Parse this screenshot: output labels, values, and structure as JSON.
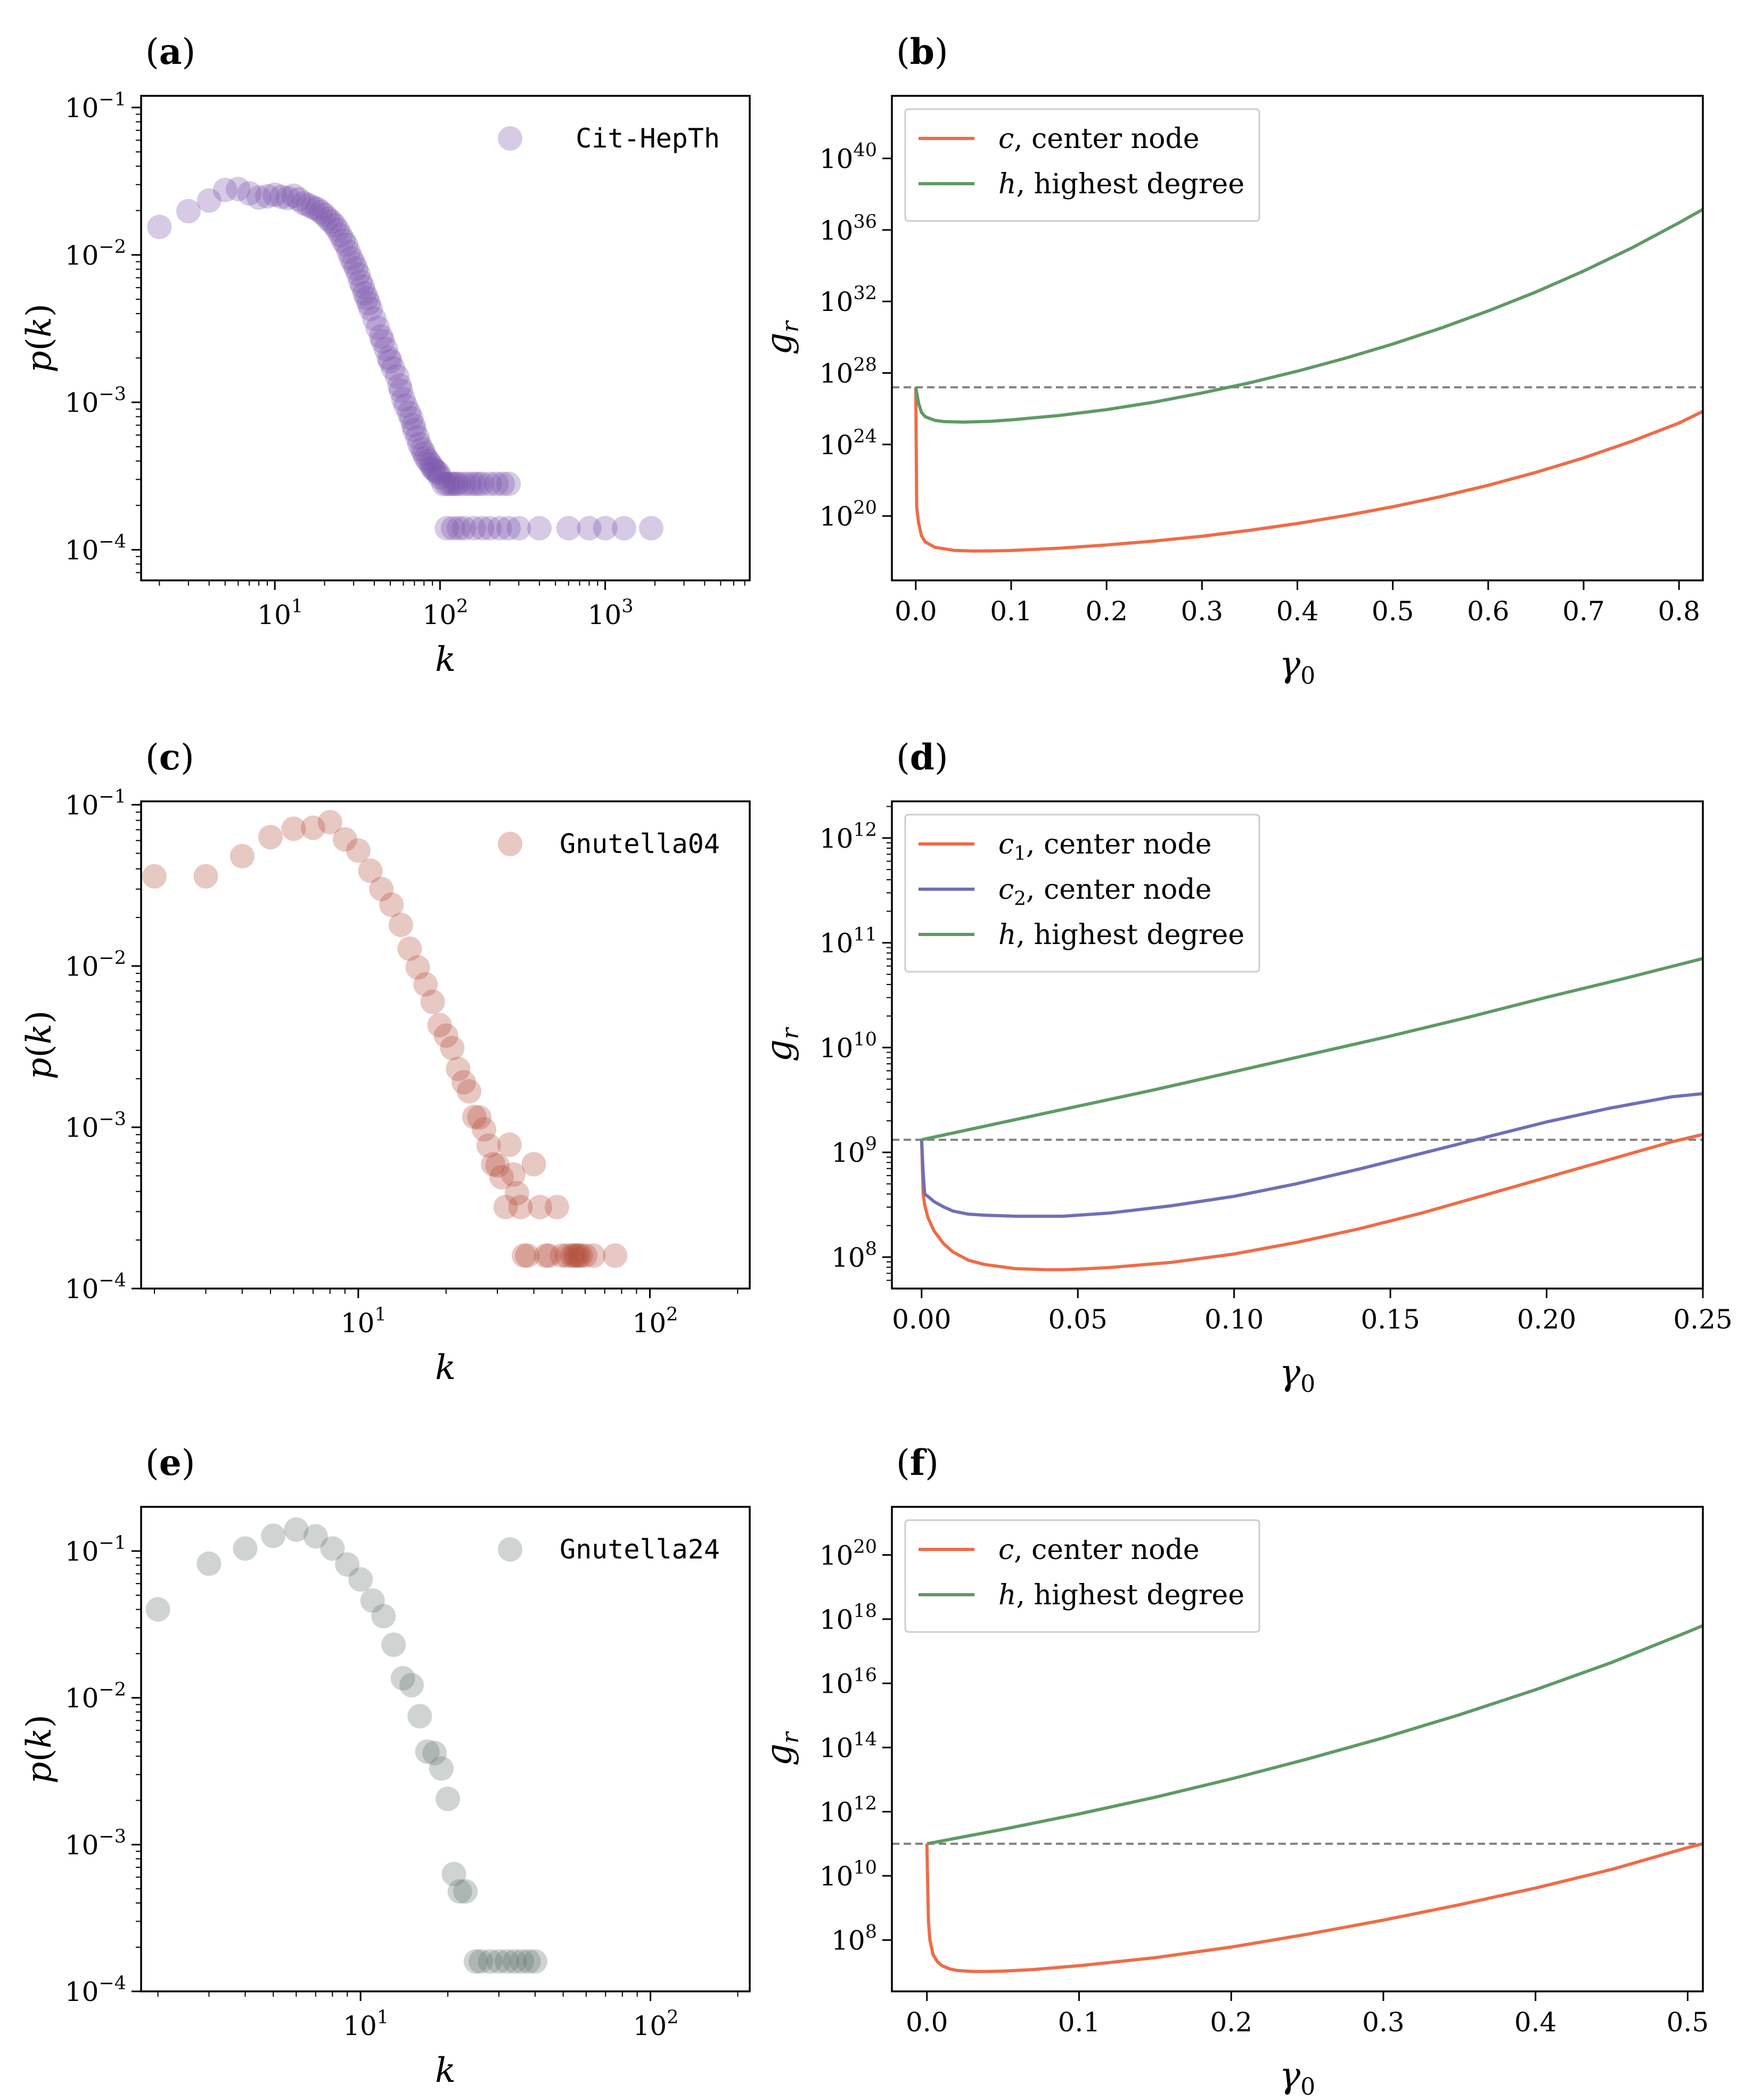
{
  "figure": {
    "panel_labels": [
      "(a)",
      "(b)",
      "(c)",
      "(d)",
      "(e)",
      "(f)"
    ]
  },
  "colors": {
    "purple": "#7851a9",
    "red": "#b24a35",
    "gray": "#5f7269",
    "orange": "#ef6c48",
    "blue": "#6f6fb7",
    "green": "#5f9a64",
    "dashed": "#808080"
  },
  "chart_data": [
    {
      "panel": "(a)",
      "type": "scatter",
      "xscale": "log",
      "yscale": "log",
      "xlabel": "k",
      "ylabel": "p(k)",
      "xlim": [
        1.55,
        7500
      ],
      "ylim": [
        6.2e-05,
        0.12
      ],
      "xticks": [
        10,
        100,
        1000
      ],
      "xtick_labels": [
        "10^1",
        "10^2",
        "10^3"
      ],
      "yticks": [
        0.0001,
        0.001,
        0.01,
        0.1
      ],
      "ytick_labels": [
        "10^-4",
        "10^-3",
        "10^-2",
        "10^-1"
      ],
      "legend": {
        "label": "Cit-HepTh",
        "position": "top-right"
      },
      "color": "#7851a9",
      "series": [
        {
          "name": "Cit-HepTh",
          "x": [
            2,
            3,
            4,
            5,
            6,
            7,
            8,
            9,
            10,
            11,
            12,
            13,
            14,
            15,
            16,
            17,
            18,
            19,
            20,
            21,
            22,
            23,
            24,
            25,
            26,
            27,
            28,
            29,
            30,
            31,
            32,
            33,
            34,
            35,
            36,
            37,
            38,
            40,
            42,
            44,
            45,
            47,
            49,
            50,
            52,
            55,
            57,
            58,
            60,
            62,
            65,
            67,
            69,
            70,
            73,
            75,
            78,
            80,
            82,
            85,
            88,
            90,
            92,
            95,
            98,
            100,
            105,
            110,
            115,
            120,
            125,
            130,
            140,
            150,
            160,
            170,
            180,
            200,
            220,
            240,
            260,
            110,
            120,
            130,
            140,
            160,
            180,
            200,
            230,
            260,
            300,
            400,
            600,
            800,
            1000,
            1300,
            1900
          ],
          "y": [
            0.0155,
            0.0198,
            0.0234,
            0.0276,
            0.028,
            0.0262,
            0.0245,
            0.025,
            0.0256,
            0.0248,
            0.0243,
            0.0252,
            0.0238,
            0.0224,
            0.0218,
            0.021,
            0.0205,
            0.0196,
            0.0187,
            0.0176,
            0.0168,
            0.0159,
            0.0148,
            0.0136,
            0.0125,
            0.0117,
            0.0105,
            0.0095,
            0.0088,
            0.0081,
            0.0074,
            0.0066,
            0.0061,
            0.0055,
            0.0051,
            0.0047,
            0.0043,
            0.0037,
            0.0032,
            0.0028,
            0.0026,
            0.0023,
            0.002,
            0.0019,
            0.0017,
            0.0015,
            0.0013,
            0.0012,
            0.00105,
            0.00095,
            0.00085,
            0.00078,
            0.0007,
            0.00065,
            0.00058,
            0.00052,
            0.00048,
            0.00045,
            0.00042,
            0.0004,
            0.00038,
            0.00036,
            0.00035,
            0.00034,
            0.00033,
            0.00031,
            0.00028,
            0.00028,
            0.00028,
            0.00028,
            0.00028,
            0.00028,
            0.00028,
            0.00028,
            0.00028,
            0.00028,
            0.00028,
            0.00028,
            0.00028,
            0.00028,
            0.00028,
            0.00014,
            0.00014,
            0.00014,
            0.00014,
            0.00014,
            0.00014,
            0.00014,
            0.00014,
            0.00014,
            0.00014,
            0.00014,
            0.00014,
            0.00014,
            0.00014,
            0.00014,
            0.00014
          ]
        }
      ]
    },
    {
      "panel": "(b)",
      "type": "line",
      "xscale": "linear",
      "yscale": "log",
      "xlabel": "γ0",
      "ylabel": "g_r",
      "xlim": [
        -0.025,
        0.825
      ],
      "ylim_exp": [
        16.4,
        43.5
      ],
      "xticks": [
        0.0,
        0.1,
        0.2,
        0.3,
        0.4,
        0.5,
        0.6,
        0.7,
        0.8
      ],
      "xtick_labels": [
        "0.0",
        "0.1",
        "0.2",
        "0.3",
        "0.4",
        "0.5",
        "0.6",
        "0.7",
        "0.8"
      ],
      "ytick_exps": [
        20,
        24,
        28,
        32,
        36,
        40
      ],
      "legend": {
        "position": "top-left"
      },
      "hline_exp": 27.2,
      "series": [
        {
          "name": "c, center node",
          "label_math": "c",
          "label_text": ", center node",
          "color": "#ef6c48",
          "x": [
            0,
            0.001,
            0.003,
            0.006,
            0.01,
            0.02,
            0.04,
            0.06,
            0.08,
            0.1,
            0.15,
            0.2,
            0.25,
            0.3,
            0.35,
            0.4,
            0.45,
            0.5,
            0.55,
            0.6,
            0.65,
            0.7,
            0.75,
            0.8,
            0.825
          ],
          "y_exp": [
            27.2,
            20.5,
            19.6,
            18.9,
            18.55,
            18.25,
            18.08,
            18.04,
            18.05,
            18.07,
            18.2,
            18.38,
            18.6,
            18.87,
            19.2,
            19.58,
            20.02,
            20.52,
            21.08,
            21.72,
            22.44,
            23.25,
            24.17,
            25.2,
            25.85
          ]
        },
        {
          "name": "h, highest degree",
          "label_math": "h",
          "label_text": ", highest degree",
          "color": "#5f9a64",
          "x": [
            0,
            0.003,
            0.006,
            0.01,
            0.02,
            0.03,
            0.05,
            0.08,
            0.1,
            0.15,
            0.2,
            0.25,
            0.3,
            0.35,
            0.4,
            0.45,
            0.5,
            0.55,
            0.6,
            0.65,
            0.7,
            0.75,
            0.8,
            0.825
          ],
          "y_exp": [
            27.2,
            26.3,
            25.8,
            25.55,
            25.35,
            25.28,
            25.25,
            25.3,
            25.38,
            25.62,
            25.95,
            26.37,
            26.88,
            27.45,
            28.1,
            28.82,
            29.62,
            30.5,
            31.47,
            32.53,
            33.7,
            34.98,
            36.4,
            37.15
          ]
        }
      ]
    },
    {
      "panel": "(c)",
      "type": "scatter",
      "xscale": "log",
      "yscale": "log",
      "xlabel": "k",
      "ylabel": "p(k)",
      "xlim": [
        1.8,
        220
      ],
      "ylim": [
        0.0001,
        0.105
      ],
      "xticks": [
        10,
        100
      ],
      "xtick_labels": [
        "10^1",
        "10^2"
      ],
      "yticks": [
        0.0001,
        0.001,
        0.01,
        0.1
      ],
      "ytick_labels": [
        "10^-4",
        "10^-3",
        "10^-2",
        "10^-1"
      ],
      "legend": {
        "label": "Gnutella04",
        "position": "top-right"
      },
      "color": "#b24a35",
      "series": [
        {
          "name": "Gnutella04",
          "x": [
            2,
            3,
            4,
            5,
            6,
            7,
            8,
            9,
            10,
            11,
            12,
            13,
            14,
            15,
            16,
            17,
            18,
            19,
            20,
            21,
            22,
            23,
            24,
            25,
            26,
            27,
            28,
            29,
            30,
            31,
            32,
            33,
            34,
            35,
            36,
            37,
            38,
            40,
            42,
            44,
            45,
            48,
            50,
            52,
            54,
            55,
            56,
            57,
            58,
            60,
            64,
            76
          ],
          "y": [
            0.036,
            0.036,
            0.048,
            0.063,
            0.071,
            0.072,
            0.078,
            0.061,
            0.052,
            0.039,
            0.03,
            0.024,
            0.018,
            0.0128,
            0.0098,
            0.0077,
            0.006,
            0.0043,
            0.0037,
            0.0031,
            0.0023,
            0.0019,
            0.00167,
            0.00116,
            0.00115,
            0.00097,
            0.00077,
            0.00059,
            0.00058,
            0.00049,
            0.00032,
            0.00078,
            0.00051,
            0.00039,
            0.00032,
            0.00016,
            0.00016,
            0.00059,
            0.00032,
            0.00016,
            0.00016,
            0.00032,
            0.00016,
            0.00016,
            0.00016,
            0.00016,
            0.00016,
            0.00016,
            0.00016,
            0.00016,
            0.00016,
            0.00016
          ]
        }
      ]
    },
    {
      "panel": "(d)",
      "type": "line",
      "xscale": "linear",
      "yscale": "log",
      "xlabel": "γ0",
      "ylabel": "g_r",
      "xlim": [
        -0.0095,
        0.25
      ],
      "ylim_exp": [
        7.7,
        12.35
      ],
      "xticks": [
        0.0,
        0.05,
        0.1,
        0.15,
        0.2,
        0.25
      ],
      "xtick_labels": [
        "0.00",
        "0.05",
        "0.10",
        "0.15",
        "0.20",
        "0.25"
      ],
      "ytick_exps": [
        8,
        9,
        10,
        11,
        12
      ],
      "legend": {
        "position": "top-left"
      },
      "hline_exp": 9.12,
      "series": [
        {
          "name": "c1, center node",
          "label_math": "c",
          "label_sub": "1",
          "label_text": ", center node",
          "color": "#ef6c48",
          "x": [
            0,
            0.0005,
            0.001,
            0.002,
            0.004,
            0.007,
            0.01,
            0.015,
            0.02,
            0.03,
            0.04,
            0.045,
            0.05,
            0.06,
            0.08,
            0.1,
            0.12,
            0.14,
            0.16,
            0.18,
            0.2,
            0.22,
            0.24,
            0.25
          ],
          "y_exp": [
            9.12,
            8.6,
            8.5,
            8.38,
            8.25,
            8.13,
            8.05,
            7.97,
            7.93,
            7.89,
            7.88,
            7.88,
            7.885,
            7.9,
            7.95,
            8.03,
            8.14,
            8.27,
            8.42,
            8.59,
            8.76,
            8.93,
            9.1,
            9.17
          ]
        },
        {
          "name": "c2, center node",
          "label_math": "c",
          "label_sub": "2",
          "label_text": ", center node",
          "color": "#6f6fb7",
          "x": [
            0,
            0.0005,
            0.001,
            0.002,
            0.004,
            0.007,
            0.01,
            0.015,
            0.02,
            0.03,
            0.04,
            0.045,
            0.05,
            0.06,
            0.08,
            0.1,
            0.12,
            0.14,
            0.16,
            0.18,
            0.2,
            0.22,
            0.24,
            0.25
          ],
          "y_exp": [
            9.12,
            8.8,
            8.6,
            8.58,
            8.53,
            8.48,
            8.44,
            8.41,
            8.4,
            8.39,
            8.39,
            8.39,
            8.4,
            8.42,
            8.49,
            8.58,
            8.7,
            8.84,
            8.99,
            9.14,
            9.29,
            9.42,
            9.53,
            9.56
          ]
        },
        {
          "name": "h, highest degree",
          "label_math": "h",
          "label_text": ", highest degree",
          "color": "#5f9a64",
          "x": [
            0,
            0.025,
            0.05,
            0.075,
            0.1,
            0.125,
            0.15,
            0.175,
            0.2,
            0.225,
            0.25
          ],
          "y_exp": [
            9.12,
            9.28,
            9.44,
            9.6,
            9.77,
            9.94,
            10.11,
            10.29,
            10.48,
            10.66,
            10.85
          ]
        }
      ]
    },
    {
      "panel": "(e)",
      "type": "scatter",
      "xscale": "log",
      "yscale": "log",
      "xlabel": "k",
      "ylabel": "p(k)",
      "xlim": [
        1.75,
        220
      ],
      "ylim": [
        0.0001,
        0.2
      ],
      "xticks": [
        10,
        100
      ],
      "xtick_labels": [
        "10^1",
        "10^2"
      ],
      "yticks": [
        0.0001,
        0.001,
        0.01,
        0.1
      ],
      "ytick_labels": [
        "10^-4",
        "10^-3",
        "10^-2",
        "10^-1"
      ],
      "legend": {
        "label": "Gnutella24",
        "position": "top-right"
      },
      "color": "#5f7269",
      "series": [
        {
          "name": "Gnutella24",
          "x": [
            2,
            3,
            4,
            5,
            6,
            7,
            8,
            9,
            10,
            11,
            12,
            13,
            14,
            15,
            16,
            17,
            18,
            19,
            20,
            21,
            22,
            23,
            25,
            26,
            28,
            30,
            32,
            34,
            36,
            38,
            40
          ],
          "y": [
            0.04,
            0.082,
            0.104,
            0.127,
            0.14,
            0.126,
            0.104,
            0.081,
            0.064,
            0.046,
            0.036,
            0.023,
            0.0136,
            0.0122,
            0.0075,
            0.0043,
            0.0042,
            0.0033,
            0.00205,
            0.00063,
            0.00048,
            0.00048,
            0.00016,
            0.00016,
            0.00016,
            0.00016,
            0.00016,
            0.00016,
            0.00016,
            0.00016,
            0.00016
          ]
        }
      ]
    },
    {
      "panel": "(f)",
      "type": "line",
      "xscale": "linear",
      "yscale": "log",
      "xlabel": "γ0",
      "ylabel": "g_r",
      "xlim": [
        -0.023,
        0.51
      ],
      "ylim_exp": [
        6.4,
        21.5
      ],
      "xticks": [
        0.0,
        0.1,
        0.2,
        0.3,
        0.4,
        0.5
      ],
      "xtick_labels": [
        "0.0",
        "0.1",
        "0.2",
        "0.3",
        "0.4",
        "0.5"
      ],
      "ytick_exps": [
        8,
        10,
        12,
        14,
        16,
        18,
        20
      ],
      "legend": {
        "position": "top-left"
      },
      "hline_exp": 11.0,
      "series": [
        {
          "name": "c, center node",
          "label_math": "c",
          "label_text": ", center node",
          "color": "#ef6c48",
          "x": [
            0,
            0.001,
            0.002,
            0.004,
            0.007,
            0.01,
            0.015,
            0.02,
            0.03,
            0.04,
            0.05,
            0.07,
            0.1,
            0.15,
            0.2,
            0.25,
            0.3,
            0.35,
            0.4,
            0.45,
            0.5,
            0.51
          ],
          "y_exp": [
            11,
            8.6,
            8.0,
            7.55,
            7.32,
            7.2,
            7.1,
            7.05,
            7.02,
            7.02,
            7.03,
            7.08,
            7.2,
            7.45,
            7.78,
            8.18,
            8.62,
            9.1,
            9.62,
            10.2,
            10.88,
            11.0
          ]
        },
        {
          "name": "h, highest degree",
          "label_math": "h",
          "label_text": ", highest degree",
          "color": "#5f9a64",
          "x": [
            0,
            0.05,
            0.1,
            0.15,
            0.2,
            0.25,
            0.3,
            0.35,
            0.4,
            0.45,
            0.5,
            0.51
          ],
          "y_exp": [
            11.0,
            11.45,
            11.93,
            12.45,
            13.02,
            13.64,
            14.3,
            15.02,
            15.8,
            16.65,
            17.6,
            17.8
          ]
        }
      ]
    }
  ]
}
